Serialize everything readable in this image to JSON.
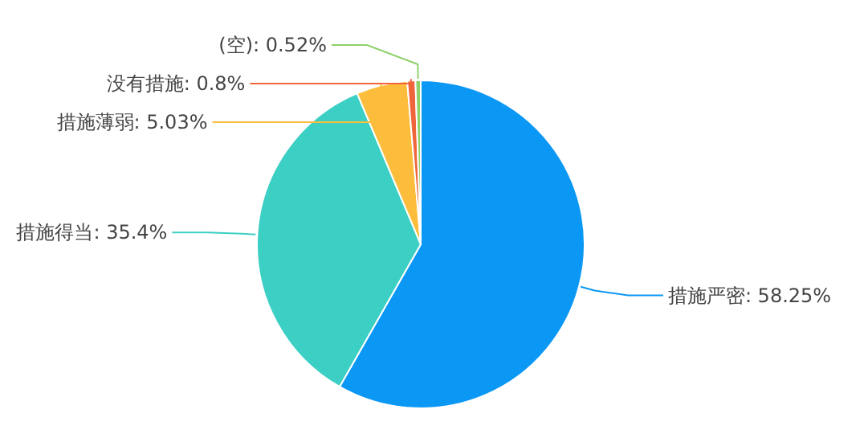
{
  "chart_data": {
    "type": "pie",
    "categories": [
      "措施严密",
      "措施得当",
      "措施薄弱",
      "没有措施",
      "(空)"
    ],
    "values": [
      58.25,
      35.4,
      5.03,
      0.8,
      0.52
    ],
    "value_labels": [
      "58.25%",
      "35.4%",
      "5.03%",
      "0.8%",
      "0.52%"
    ],
    "colors": [
      "#0b97f4",
      "#3ccfc4",
      "#fcbd3c",
      "#f0663c",
      "#8fd16a"
    ]
  }
}
